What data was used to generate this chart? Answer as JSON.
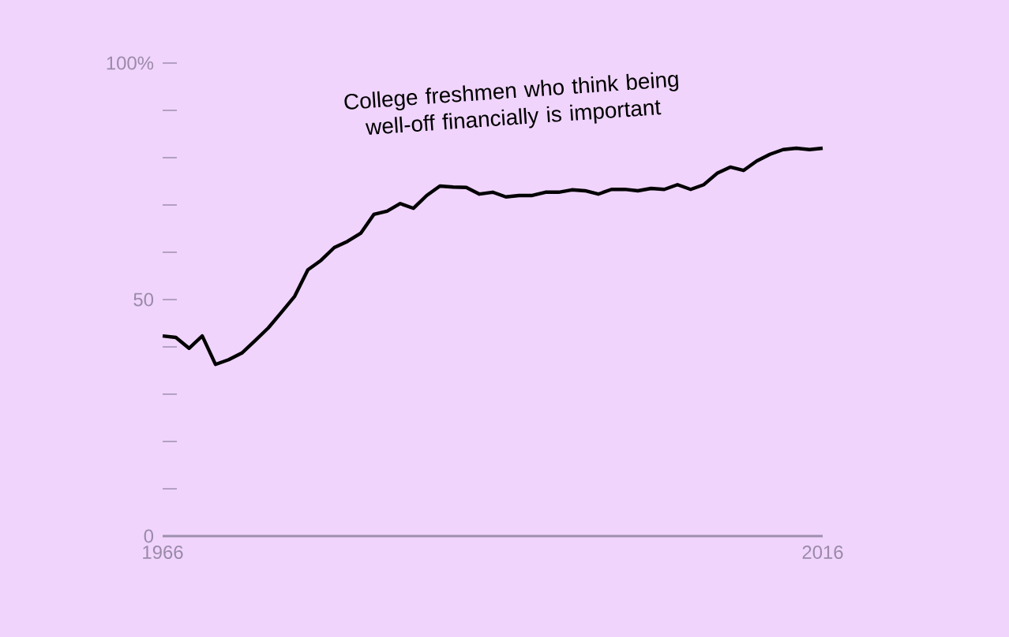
{
  "chart_data": {
    "type": "line",
    "title": "College freshmen who think being well-off financially is important",
    "x": [
      1966,
      1967,
      1968,
      1969,
      1970,
      1971,
      1972,
      1973,
      1974,
      1975,
      1976,
      1977,
      1978,
      1979,
      1980,
      1981,
      1982,
      1983,
      1984,
      1985,
      1986,
      1987,
      1988,
      1989,
      1990,
      1991,
      1992,
      1993,
      1994,
      1995,
      1996,
      1997,
      1998,
      1999,
      2000,
      2001,
      2002,
      2003,
      2004,
      2005,
      2006,
      2007,
      2008,
      2009,
      2010,
      2011,
      2012,
      2013,
      2014,
      2015,
      2016
    ],
    "series": [
      {
        "color": "#000000",
        "values": [
          42.3,
          42,
          39.7,
          42.3,
          36.3,
          37.3,
          38.7,
          41.3,
          44,
          47.3,
          50.7,
          56.3,
          58.3,
          61,
          62.3,
          64,
          68,
          68.7,
          70.3,
          69.3,
          72,
          74,
          73.8,
          73.7,
          72.3,
          72.7,
          71.7,
          72,
          72,
          72.7,
          72.7,
          73.2,
          73,
          72.3,
          73.3,
          73.3,
          73,
          73.5,
          73.3,
          74.3,
          73.3,
          74.3,
          76.7,
          78,
          77.3,
          79.3,
          80.7,
          81.7,
          82,
          81.7,
          82
        ]
      }
    ],
    "xlim": [
      1966,
      2016
    ],
    "xticks": [
      1966,
      2016
    ],
    "ylim": [
      0,
      100
    ],
    "yticks": [
      0,
      {
        "value": 10,
        "label": null
      },
      {
        "value": 20,
        "label": null
      },
      {
        "value": 30,
        "label": null
      },
      {
        "value": 40,
        "label": null
      },
      50,
      {
        "value": 60,
        "label": null
      },
      {
        "value": 70,
        "label": null
      },
      {
        "value": 80,
        "label": null
      },
      {
        "value": 90,
        "label": null
      },
      {
        "value": 100,
        "label": "100%"
      }
    ],
    "line_style": "solid"
  }
}
